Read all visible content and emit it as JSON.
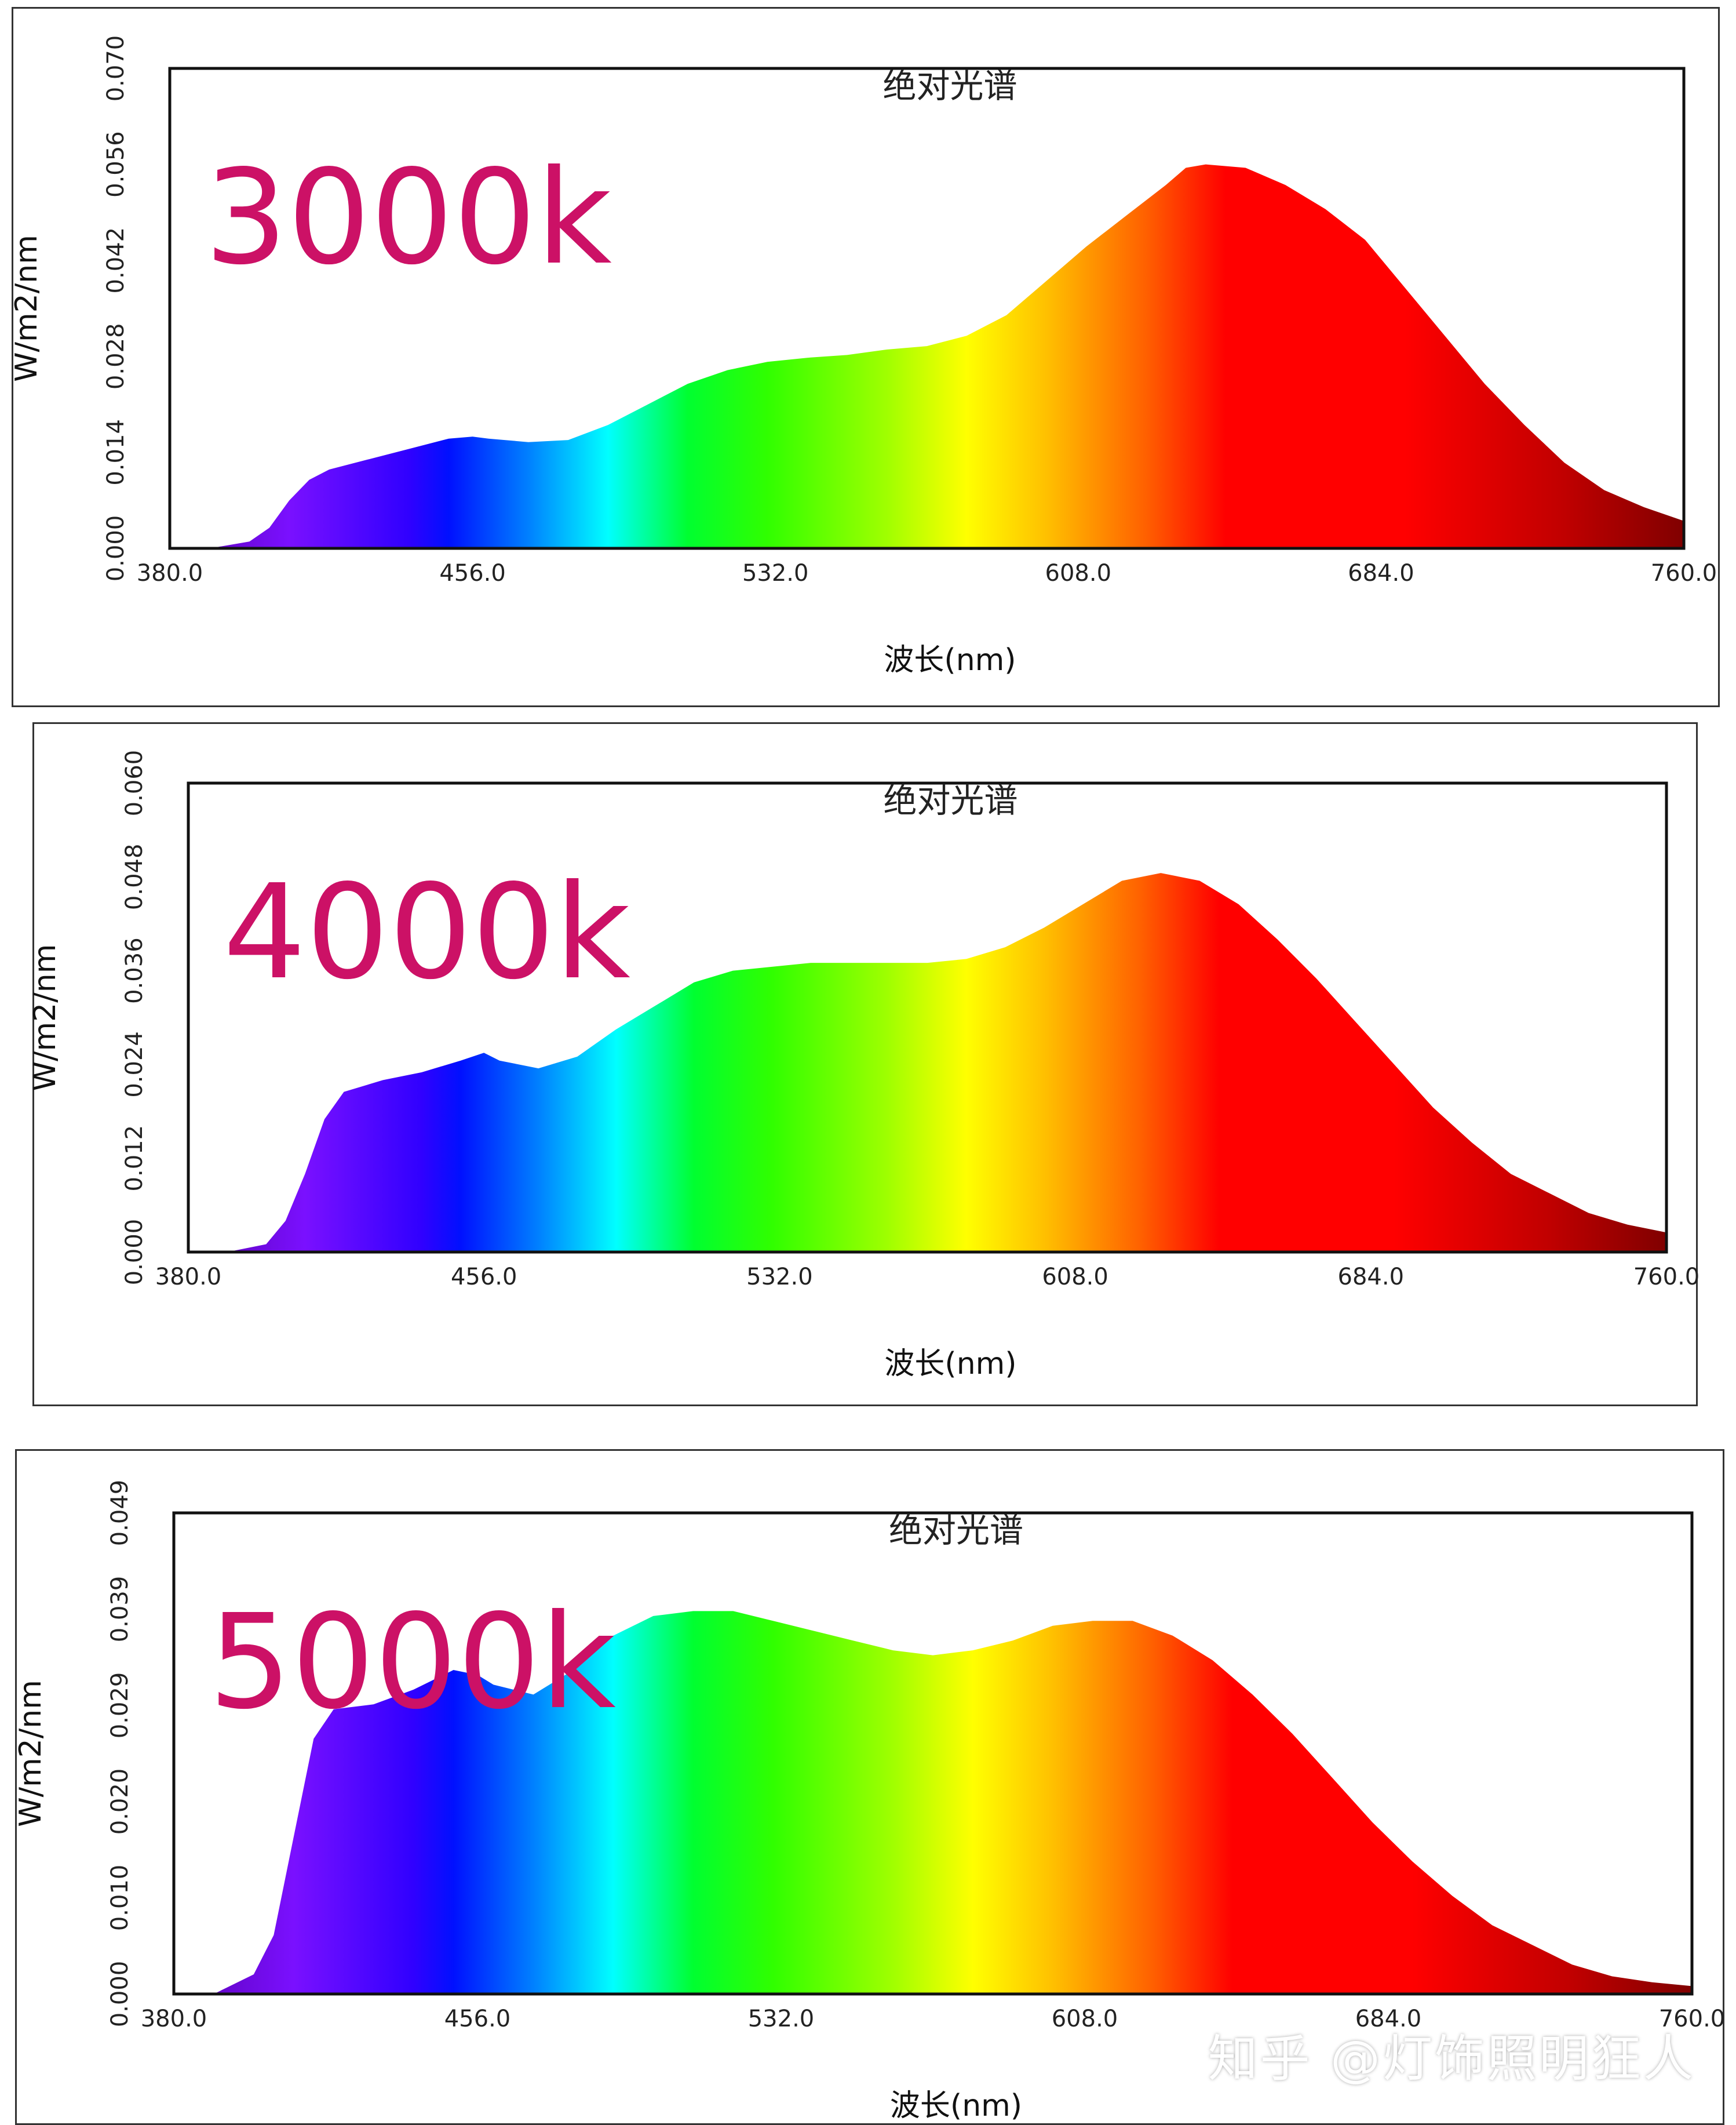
{
  "colors": {
    "label_magenta": "#cc1166",
    "frame": "#333333",
    "axis": "#111111"
  },
  "chart_data": [
    {
      "type": "area",
      "title": "绝对光谱",
      "annotation": "3000k",
      "xlabel": "波长(nm)",
      "ylabel": "W/m2/nm",
      "xlim": [
        380.0,
        760.0
      ],
      "ylim": [
        0.0,
        0.07
      ],
      "xticks": [
        "380.0",
        "456.0",
        "532.0",
        "608.0",
        "684.0",
        "760.0"
      ],
      "yticks": [
        "0.000",
        "0.014",
        "0.028",
        "0.042",
        "0.056",
        "0.070"
      ],
      "x": [
        380,
        390,
        400,
        405,
        410,
        415,
        420,
        430,
        440,
        450,
        456,
        460,
        470,
        480,
        490,
        500,
        510,
        520,
        530,
        540,
        550,
        560,
        570,
        580,
        590,
        600,
        610,
        620,
        630,
        635,
        640,
        650,
        660,
        670,
        680,
        690,
        700,
        710,
        720,
        730,
        740,
        750,
        760
      ],
      "values": [
        0.0,
        0.0,
        0.001,
        0.003,
        0.007,
        0.01,
        0.0115,
        0.013,
        0.0145,
        0.016,
        0.0163,
        0.016,
        0.0155,
        0.0158,
        0.018,
        0.021,
        0.024,
        0.026,
        0.0272,
        0.0278,
        0.0282,
        0.029,
        0.0295,
        0.031,
        0.034,
        0.039,
        0.044,
        0.0485,
        0.053,
        0.0555,
        0.056,
        0.0555,
        0.053,
        0.0495,
        0.045,
        0.038,
        0.031,
        0.024,
        0.018,
        0.0125,
        0.0085,
        0.006,
        0.004
      ]
    },
    {
      "type": "area",
      "title": "绝对光谱",
      "annotation": "4000k",
      "xlabel": "波长(nm)",
      "ylabel": "W/m2/nm",
      "xlim": [
        380.0,
        760.0
      ],
      "ylim": [
        0.0,
        0.06
      ],
      "xticks": [
        "380.0",
        "456.0",
        "532.0",
        "608.0",
        "684.0",
        "760.0"
      ],
      "yticks": [
        "0.000",
        "0.012",
        "0.024",
        "0.036",
        "0.048",
        "0.060"
      ],
      "x": [
        380,
        390,
        400,
        405,
        410,
        415,
        420,
        430,
        440,
        450,
        456,
        460,
        470,
        480,
        490,
        500,
        510,
        520,
        530,
        540,
        550,
        560,
        570,
        580,
        590,
        600,
        610,
        620,
        630,
        640,
        650,
        660,
        670,
        680,
        690,
        700,
        710,
        720,
        730,
        740,
        750,
        760
      ],
      "values": [
        0.0,
        0.0,
        0.001,
        0.004,
        0.01,
        0.017,
        0.0205,
        0.022,
        0.023,
        0.0245,
        0.0255,
        0.0245,
        0.0235,
        0.025,
        0.0285,
        0.0315,
        0.0345,
        0.036,
        0.0365,
        0.037,
        0.037,
        0.037,
        0.037,
        0.0375,
        0.039,
        0.0415,
        0.0445,
        0.0475,
        0.0485,
        0.0475,
        0.0445,
        0.04,
        0.035,
        0.0295,
        0.024,
        0.0185,
        0.014,
        0.01,
        0.0075,
        0.005,
        0.0035,
        0.0025
      ]
    },
    {
      "type": "area",
      "title": "绝对光谱",
      "annotation": "5000k",
      "xlabel": "波长(nm)",
      "ylabel": "W/m2/nm",
      "xlim": [
        380.0,
        760.0
      ],
      "ylim": [
        0.0,
        0.049
      ],
      "xticks": [
        "380.0",
        "456.0",
        "532.0",
        "608.0",
        "684.0",
        "760.0"
      ],
      "yticks": [
        "0.000",
        "0.010",
        "0.020",
        "0.029",
        "0.039",
        "0.049"
      ],
      "x": [
        380,
        390,
        400,
        405,
        410,
        415,
        420,
        430,
        440,
        450,
        456,
        460,
        470,
        480,
        490,
        500,
        510,
        520,
        530,
        540,
        550,
        560,
        570,
        580,
        590,
        600,
        610,
        620,
        630,
        640,
        650,
        660,
        670,
        680,
        690,
        700,
        710,
        720,
        730,
        740,
        750,
        760
      ],
      "values": [
        0.0,
        0.0,
        0.002,
        0.006,
        0.016,
        0.026,
        0.029,
        0.0295,
        0.031,
        0.033,
        0.0325,
        0.0315,
        0.0305,
        0.033,
        0.0365,
        0.0385,
        0.039,
        0.039,
        0.038,
        0.037,
        0.036,
        0.035,
        0.0345,
        0.035,
        0.036,
        0.0375,
        0.038,
        0.038,
        0.0365,
        0.034,
        0.0305,
        0.0265,
        0.022,
        0.0175,
        0.0135,
        0.01,
        0.007,
        0.005,
        0.003,
        0.0018,
        0.0012,
        0.0008
      ]
    }
  ],
  "watermark": "知乎 @灯饰照明狂人"
}
